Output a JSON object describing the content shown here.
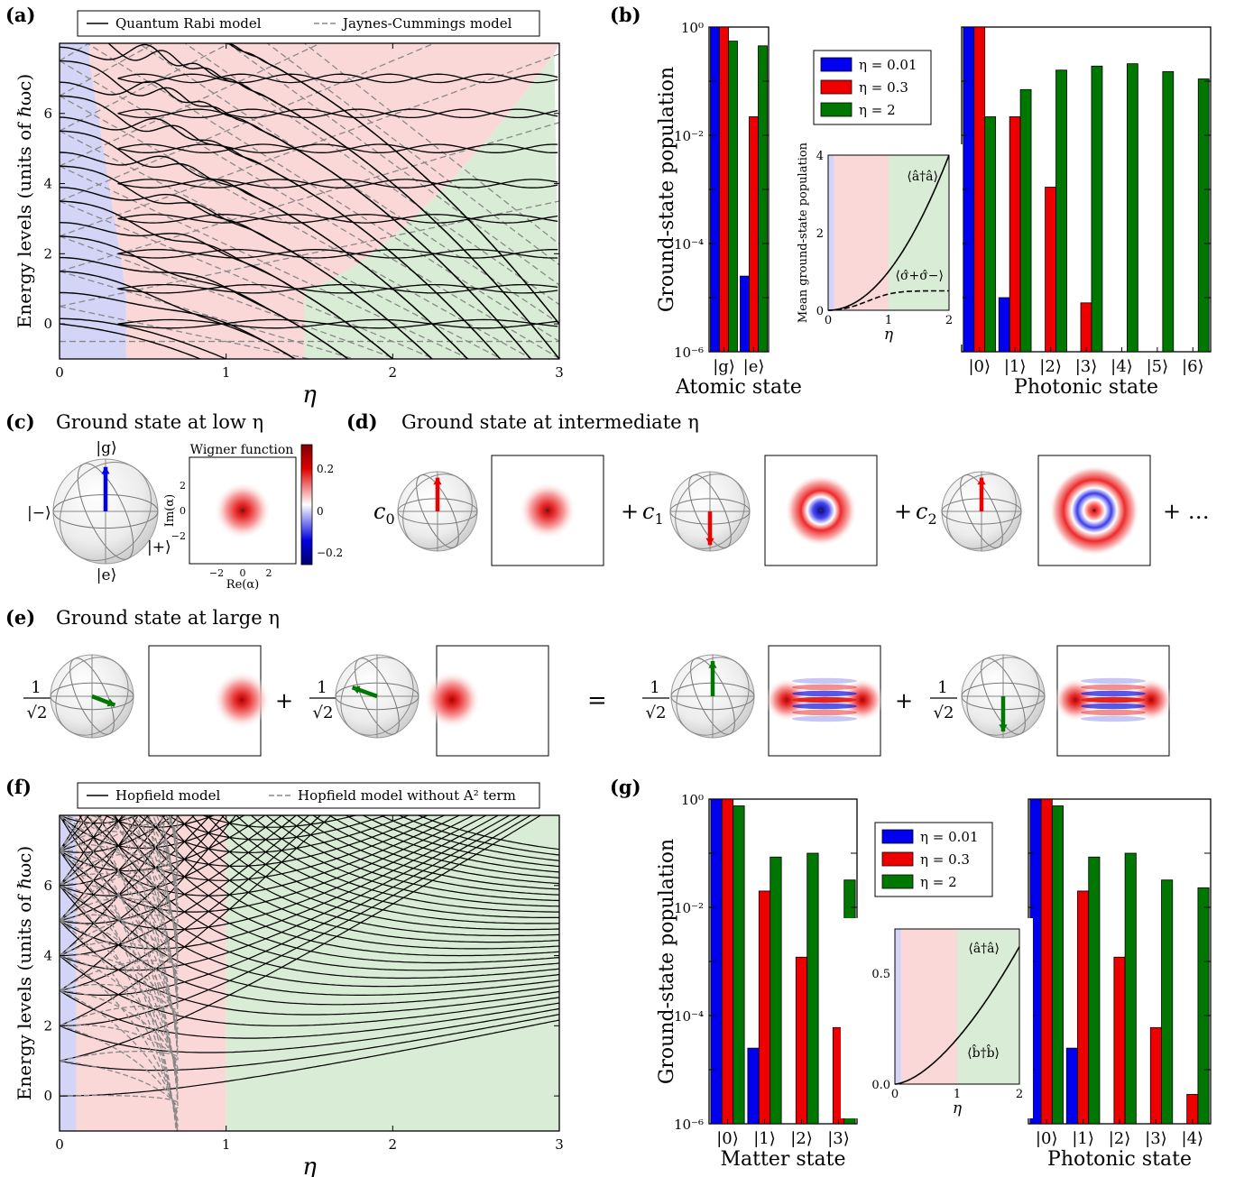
{
  "panels": {
    "a": {
      "label": "(a)"
    },
    "b": {
      "label": "(b)"
    },
    "c": {
      "label": "(c)",
      "title": "Ground state at low η"
    },
    "d": {
      "label": "(d)",
      "title": "Ground state at intermediate η"
    },
    "e": {
      "label": "(e)",
      "title": "Ground state at large η"
    },
    "f": {
      "label": "(f)"
    },
    "g": {
      "label": "(g)"
    }
  },
  "colors": {
    "blue": "#0000ee",
    "red": "#ee0000",
    "green": "#007700",
    "region_blue": "#d4d4f7",
    "region_red": "#fbd8d8",
    "region_green": "#d9ecd5"
  },
  "panel_c": {
    "wigner_title": "Wigner function",
    "sphere_labels": {
      "top": "|g⟩",
      "bottom": "|e⟩",
      "left": "|−⟩",
      "right": "|+⟩"
    },
    "axis_x": "Re(α)",
    "axis_y": "Im(α)",
    "ticks": [
      "−2",
      "0",
      "2"
    ],
    "colorbar_ticks": [
      "0.2",
      "0",
      "−0.2"
    ]
  },
  "panel_d": {
    "coeffs": [
      "c0",
      "c1",
      "c2"
    ],
    "plus": "+",
    "ellipsis": "+ …"
  },
  "panel_e": {
    "frac_num": "1",
    "frac_den": "√2",
    "plus": "+",
    "equals": "="
  },
  "chart_data": [
    {
      "panel": "a",
      "type": "line",
      "xlabel": "η",
      "ylabel": "Energy levels (units of ℏωc)",
      "xlim": [
        0,
        3
      ],
      "ylim": [
        -1,
        8
      ],
      "xticks": [
        "0",
        "1",
        "2",
        "3"
      ],
      "yticks": [
        "0",
        "2",
        "4",
        "6"
      ],
      "legend": {
        "placement": "top",
        "entries": [
          "Quantum Rabi model",
          "Jaynes-Cummings model"
        ]
      }
    },
    {
      "panel": "b",
      "type": "bar",
      "yscale": "log",
      "ylabel": "Ground-state population",
      "yticks": [
        "10⁰",
        "10⁻²",
        "10⁻⁴",
        "10⁻⁶"
      ],
      "ylim": [
        1e-06,
        1
      ],
      "legend": {
        "placement": "top-center",
        "entries": [
          "η = 0.01",
          "η = 0.3",
          "η = 2"
        ]
      },
      "groups": [
        {
          "label": "Atomic state",
          "categories": [
            "|g⟩",
            "|e⟩"
          ],
          "series": [
            {
              "name": "η = 0.01",
              "values": [
                1.0,
                2.5e-05
              ]
            },
            {
              "name": "η = 0.3",
              "values": [
                1.0,
                0.022
              ]
            },
            {
              "name": "η = 2",
              "values": [
                0.55,
                0.45
              ]
            }
          ]
        },
        {
          "label": "Photonic state",
          "categories": [
            "|0⟩",
            "|1⟩",
            "|2⟩",
            "|3⟩",
            "|4⟩",
            "|5⟩",
            "|6⟩"
          ],
          "series": [
            {
              "name": "η = 0.01",
              "values": [
                1.0,
                1e-05,
                null,
                null,
                null,
                null,
                null
              ]
            },
            {
              "name": "η = 0.3",
              "values": [
                1.0,
                0.022,
                0.0011,
                8e-06,
                null,
                null,
                null
              ]
            },
            {
              "name": "η = 2",
              "values": [
                0.022,
                0.07,
                0.16,
                0.19,
                0.21,
                0.15,
                0.11
              ]
            }
          ]
        }
      ],
      "inset": {
        "xlabel": "η",
        "ylabel": "Mean ground-state population",
        "xlim": [
          0,
          2
        ],
        "ylim": [
          0,
          4
        ],
        "xticks": [
          "0",
          "1",
          "2"
        ],
        "yticks": [
          "0",
          "2",
          "4"
        ],
        "labels": [
          "⟨â†â⟩",
          "⟨σ̂+σ̂−⟩"
        ]
      }
    },
    {
      "panel": "f",
      "type": "line",
      "xlabel": "η",
      "ylabel": "Energy levels (units of ℏωc)",
      "xlim": [
        0,
        3
      ],
      "ylim": [
        -1,
        8
      ],
      "xticks": [
        "0",
        "1",
        "2",
        "3"
      ],
      "yticks": [
        "0",
        "2",
        "4",
        "6"
      ],
      "legend": {
        "placement": "top",
        "entries": [
          "Hopfield model",
          "Hopfield model without A² term"
        ]
      }
    },
    {
      "panel": "g",
      "type": "bar",
      "yscale": "log",
      "ylabel": "Ground-state population",
      "yticks": [
        "10⁰",
        "10⁻²",
        "10⁻⁴",
        "10⁻⁶"
      ],
      "ylim": [
        1e-06,
        1
      ],
      "legend": {
        "placement": "top-center",
        "entries": [
          "η = 0.01",
          "η = 0.3",
          "η = 2"
        ]
      },
      "groups": [
        {
          "label": "Matter state",
          "categories": [
            "|0⟩",
            "|1⟩",
            "|2⟩",
            "|3⟩"
          ],
          "series": [
            {
              "name": "η = 0.01",
              "values": [
                1.0,
                2.5e-05,
                null,
                null
              ]
            },
            {
              "name": "η = 0.3",
              "values": [
                1.0,
                0.02,
                0.0012,
                6e-05
              ]
            },
            {
              "name": "η = 2",
              "values": [
                0.75,
                0.085,
                0.1,
                0.032
              ]
            }
          ]
        },
        {
          "label": "Photonic state",
          "categories": [
            "|0⟩",
            "|1⟩",
            "|2⟩",
            "|3⟩",
            "|4⟩"
          ],
          "series": [
            {
              "name": "η = 0.01",
              "values": [
                1.0,
                2.5e-05,
                null,
                null,
                null
              ]
            },
            {
              "name": "η = 0.3",
              "values": [
                1.0,
                0.02,
                0.0012,
                6e-05,
                3.5e-06
              ]
            },
            {
              "name": "η = 2",
              "values": [
                0.75,
                0.085,
                0.1,
                0.032,
                0.023
              ]
            }
          ]
        }
      ],
      "inset": {
        "xlabel": "η",
        "xlim": [
          0,
          2
        ],
        "ylim": [
          0,
          0.7
        ],
        "xticks": [
          "0",
          "1",
          "2"
        ],
        "yticks": [
          "0.0",
          "0.5"
        ],
        "labels": [
          "⟨â†â⟩",
          "⟨b̂†b̂⟩"
        ]
      }
    }
  ]
}
